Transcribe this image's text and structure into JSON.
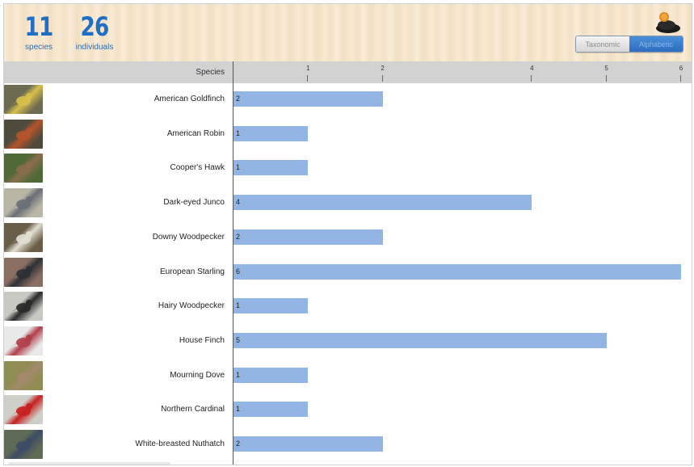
{
  "stats": {
    "species_count": "11",
    "species_label": "species",
    "individuals_count": "26",
    "individuals_label": "individuals"
  },
  "sort_toggle": {
    "taxonomic_label": "Taxonomic",
    "alphabetic_label": "Alphabetic",
    "selected": "Alphabetic"
  },
  "colors": {
    "accent": "#1f6fc6",
    "bar": "#92b5e3"
  },
  "chart_data": {
    "type": "bar",
    "orientation": "horizontal",
    "ylabel": "Species",
    "xlim": [
      0,
      6
    ],
    "x_ticks": [
      "1",
      "2",
      "4",
      "5",
      "6"
    ],
    "categories": [
      "American Goldfinch",
      "American Robin",
      "Cooper's Hawk",
      "Dark-eyed Junco",
      "Downy Woodpecker",
      "European Starling",
      "Hairy Woodpecker",
      "House Finch",
      "Mourning Dove",
      "Northern Cardinal",
      "White-breasted Nuthatch"
    ],
    "values": [
      2,
      1,
      1,
      4,
      2,
      6,
      1,
      5,
      1,
      1,
      2
    ],
    "thumbnail_colors": [
      [
        "#6d6a52",
        "#d7c04a"
      ],
      [
        "#4e4a3c",
        "#b5542a"
      ],
      [
        "#4f6a36",
        "#8a6d4c"
      ],
      [
        "#b9b6a4",
        "#6a6f78"
      ],
      [
        "#6a5e48",
        "#e2ded4"
      ],
      [
        "#8a6e62",
        "#2e3036"
      ],
      [
        "#c9c9c4",
        "#2a2a2a"
      ],
      [
        "#e9e9e9",
        "#b0404a"
      ],
      [
        "#8f8d52",
        "#a08a6a"
      ],
      [
        "#cfcfc9",
        "#c8201e"
      ],
      [
        "#5f6b55",
        "#3d4c66"
      ]
    ]
  }
}
